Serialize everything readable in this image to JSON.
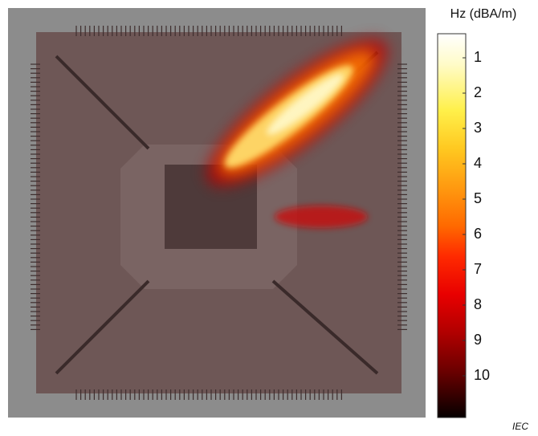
{
  "colorbar": {
    "title": "Hz (dBA/m)",
    "ticks": [
      "1",
      "2",
      "3",
      "4",
      "5",
      "6",
      "7",
      "8",
      "9",
      "10"
    ]
  },
  "credit": "IEC"
}
